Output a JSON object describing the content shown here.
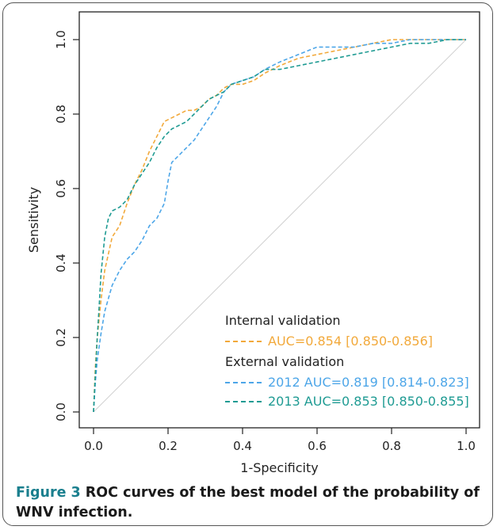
{
  "chart_data": {
    "type": "line",
    "xlabel": "1-Specificity",
    "ylabel": "Sensitivity",
    "xlim": [
      0.0,
      1.0
    ],
    "ylim": [
      0.0,
      1.0
    ],
    "xticks": [
      "0.0",
      "0.2",
      "0.4",
      "0.6",
      "0.8",
      "1.0"
    ],
    "yticks": [
      "0.0",
      "0.2",
      "0.4",
      "0.6",
      "0.8",
      "1.0"
    ],
    "grid": false,
    "legend_position": "bottom-right",
    "legend": {
      "group1_title": "Internal validation",
      "group2_title": "External validation"
    },
    "reference_line": {
      "x": [
        0,
        1
      ],
      "y": [
        0,
        1
      ],
      "color": "#d0d0d0"
    },
    "series": [
      {
        "name": "AUC=0.854 [0.850-0.856]",
        "color": "#f2a93b",
        "x": [
          0.0,
          0.005,
          0.01,
          0.02,
          0.03,
          0.05,
          0.07,
          0.09,
          0.11,
          0.13,
          0.15,
          0.17,
          0.19,
          0.21,
          0.23,
          0.25,
          0.27,
          0.29,
          0.31,
          0.33,
          0.35,
          0.37,
          0.4,
          0.43,
          0.46,
          0.5,
          0.55,
          0.6,
          0.65,
          0.7,
          0.75,
          0.8,
          0.85,
          0.9,
          0.95,
          1.0
        ],
        "y": [
          0.0,
          0.12,
          0.2,
          0.3,
          0.38,
          0.47,
          0.5,
          0.56,
          0.61,
          0.65,
          0.7,
          0.74,
          0.78,
          0.79,
          0.8,
          0.81,
          0.81,
          0.82,
          0.84,
          0.85,
          0.87,
          0.88,
          0.88,
          0.89,
          0.91,
          0.93,
          0.95,
          0.96,
          0.97,
          0.98,
          0.99,
          1.0,
          1.0,
          1.0,
          1.0,
          1.0
        ]
      },
      {
        "name": "2012 AUC=0.819 [0.814-0.823]",
        "color": "#4da6e8",
        "x": [
          0.0,
          0.005,
          0.01,
          0.02,
          0.03,
          0.05,
          0.07,
          0.09,
          0.11,
          0.13,
          0.15,
          0.17,
          0.19,
          0.2,
          0.21,
          0.23,
          0.25,
          0.27,
          0.29,
          0.31,
          0.33,
          0.35,
          0.37,
          0.4,
          0.43,
          0.46,
          0.5,
          0.55,
          0.6,
          0.65,
          0.7,
          0.75,
          0.8,
          0.85,
          0.9,
          0.95,
          1.0
        ],
        "y": [
          0.0,
          0.08,
          0.14,
          0.21,
          0.27,
          0.34,
          0.38,
          0.41,
          0.43,
          0.46,
          0.5,
          0.52,
          0.56,
          0.62,
          0.67,
          0.69,
          0.71,
          0.73,
          0.76,
          0.79,
          0.82,
          0.86,
          0.88,
          0.89,
          0.9,
          0.92,
          0.94,
          0.96,
          0.98,
          0.98,
          0.98,
          0.99,
          0.99,
          1.0,
          1.0,
          1.0,
          1.0
        ]
      },
      {
        "name": "2013 AUC=0.853 [0.850-0.855]",
        "color": "#1f9b93",
        "x": [
          0.0,
          0.005,
          0.01,
          0.015,
          0.02,
          0.03,
          0.04,
          0.05,
          0.07,
          0.09,
          0.11,
          0.13,
          0.15,
          0.17,
          0.19,
          0.21,
          0.23,
          0.25,
          0.27,
          0.29,
          0.31,
          0.33,
          0.35,
          0.37,
          0.4,
          0.43,
          0.46,
          0.5,
          0.55,
          0.6,
          0.65,
          0.7,
          0.75,
          0.8,
          0.85,
          0.9,
          0.95,
          1.0
        ],
        "y": [
          0.0,
          0.1,
          0.2,
          0.28,
          0.37,
          0.47,
          0.52,
          0.54,
          0.55,
          0.57,
          0.61,
          0.64,
          0.67,
          0.71,
          0.74,
          0.76,
          0.77,
          0.78,
          0.8,
          0.82,
          0.84,
          0.85,
          0.86,
          0.88,
          0.89,
          0.9,
          0.92,
          0.92,
          0.93,
          0.94,
          0.95,
          0.96,
          0.97,
          0.98,
          0.99,
          0.99,
          1.0,
          1.0
        ]
      }
    ]
  },
  "caption": {
    "label": "Figure 3",
    "text": " ROC curves of the best model of the probability of WNV infection."
  }
}
